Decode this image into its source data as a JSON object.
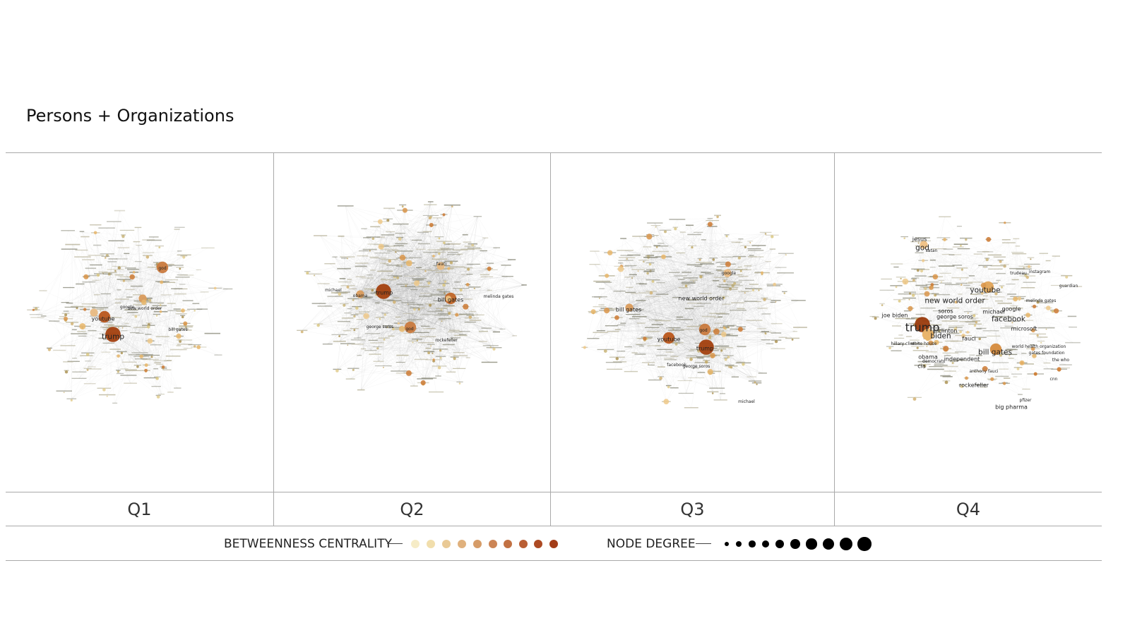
{
  "title": "Persons + Organizations",
  "quarters": [
    {
      "label": "Q1",
      "labels": [
        {
          "text": "trump",
          "size": "large"
        },
        {
          "text": "youtube",
          "size": "medium"
        },
        {
          "text": "bill gates",
          "size": "small"
        },
        {
          "text": "god",
          "size": "small"
        },
        {
          "text": "new world order",
          "size": "small"
        },
        {
          "text": "google",
          "size": "small"
        }
      ],
      "hubs": [
        {
          "color": "#a3400f",
          "size": 3
        },
        {
          "color": "#b9561b",
          "size": 2
        },
        {
          "color": "#c97a3e",
          "size": 2
        },
        {
          "color": "#d99b5c",
          "size": 1
        },
        {
          "color": "#e8b982",
          "size": 1
        }
      ]
    },
    {
      "label": "Q2",
      "labels": [
        {
          "text": "trump",
          "size": "medium"
        },
        {
          "text": "bill gates",
          "size": "medium"
        },
        {
          "text": "god",
          "size": "small"
        },
        {
          "text": "obama",
          "size": "small"
        },
        {
          "text": "michael",
          "size": "small"
        },
        {
          "text": "fauci",
          "size": "small"
        },
        {
          "text": "george soros",
          "size": "small"
        },
        {
          "text": "melinda gates",
          "size": "small"
        },
        {
          "text": "rockefeller",
          "size": "small"
        }
      ],
      "hubs": [
        {
          "color": "#a3400f",
          "size": 3
        },
        {
          "color": "#c06628",
          "size": 2
        },
        {
          "color": "#c97a3e",
          "size": 2
        },
        {
          "color": "#d99b5c",
          "size": 1
        },
        {
          "color": "#e8b982",
          "size": 1
        }
      ]
    },
    {
      "label": "Q3",
      "labels": [
        {
          "text": "trump",
          "size": "medium"
        },
        {
          "text": "youtube",
          "size": "medium"
        },
        {
          "text": "new world order",
          "size": "medium"
        },
        {
          "text": "bill gates",
          "size": "medium"
        },
        {
          "text": "god",
          "size": "small"
        },
        {
          "text": "facebook",
          "size": "small"
        },
        {
          "text": "george soros",
          "size": "small"
        },
        {
          "text": "google",
          "size": "small"
        },
        {
          "text": "michael",
          "size": "small"
        }
      ],
      "hubs": [
        {
          "color": "#a3400f",
          "size": 3
        },
        {
          "color": "#b9561b",
          "size": 2
        },
        {
          "color": "#c97a3e",
          "size": 2
        },
        {
          "color": "#d99b5c",
          "size": 1
        },
        {
          "color": "#e8b982",
          "size": 1
        }
      ]
    },
    {
      "label": "Q4",
      "labels": [
        {
          "text": "trump",
          "size": "xlarge"
        },
        {
          "text": "youtube",
          "size": "large"
        },
        {
          "text": "new world order",
          "size": "large"
        },
        {
          "text": "bill gates",
          "size": "large"
        },
        {
          "text": "facebook",
          "size": "large"
        },
        {
          "text": "biden",
          "size": "large"
        },
        {
          "text": "god",
          "size": "large"
        },
        {
          "text": "jesus",
          "size": "medium"
        },
        {
          "text": "google",
          "size": "medium"
        },
        {
          "text": "michael",
          "size": "medium"
        },
        {
          "text": "soros",
          "size": "medium"
        },
        {
          "text": "george soros",
          "size": "medium"
        },
        {
          "text": "clinton",
          "size": "medium"
        },
        {
          "text": "fauci",
          "size": "medium"
        },
        {
          "text": "obama",
          "size": "medium"
        },
        {
          "text": "cia",
          "size": "medium"
        },
        {
          "text": "joe biden",
          "size": "medium"
        },
        {
          "text": "microsoft",
          "size": "medium"
        },
        {
          "text": "independent",
          "size": "medium"
        },
        {
          "text": "rockefeller",
          "size": "medium"
        },
        {
          "text": "big pharma",
          "size": "medium"
        },
        {
          "text": "satan",
          "size": "small"
        },
        {
          "text": "melinda gates",
          "size": "small"
        },
        {
          "text": "world health organization",
          "size": "small"
        },
        {
          "text": "anthony fauci",
          "size": "small"
        },
        {
          "text": "white house",
          "size": "small"
        },
        {
          "text": "hillary clinton",
          "size": "small"
        },
        {
          "text": "gates foundation",
          "size": "small"
        },
        {
          "text": "the who",
          "size": "small"
        },
        {
          "text": "pfizer",
          "size": "small"
        },
        {
          "text": "guardian",
          "size": "small"
        },
        {
          "text": "democrats",
          "size": "small"
        },
        {
          "text": "trudeau",
          "size": "small"
        },
        {
          "text": "instagram",
          "size": "small"
        },
        {
          "text": "cnn",
          "size": "small"
        }
      ],
      "hubs": [
        {
          "color": "#9a3a0c",
          "size": 3
        },
        {
          "color": "#e0a356",
          "size": 2
        },
        {
          "color": "#e8b165",
          "size": 2
        },
        {
          "color": "#d58a3c",
          "size": 2
        },
        {
          "color": "#efc083",
          "size": 1
        }
      ]
    }
  ],
  "legend": {
    "betweenness_label": "BETWEENNESS CENTRALITY",
    "betweenness_colors": [
      "#f6ecc7",
      "#f1deac",
      "#e9c995",
      "#e0b17d",
      "#d69c68",
      "#cc8555",
      "#c27143",
      "#b95e34",
      "#ad4a23",
      "#a33d18"
    ],
    "degree_label": "NODE DEGREE",
    "degree_sizes": [
      1,
      2,
      3,
      4,
      5,
      6,
      7,
      8,
      9,
      10
    ]
  }
}
